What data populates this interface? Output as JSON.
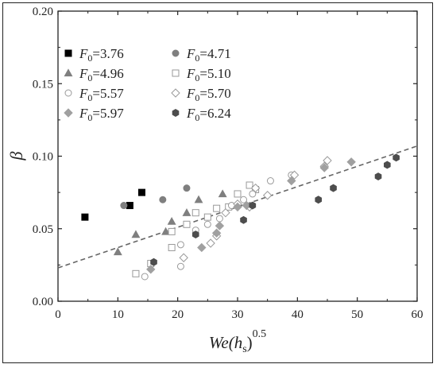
{
  "chart_data": {
    "type": "scatter",
    "title": "",
    "xlabel_main": "We",
    "xlabel_paren": "(h",
    "xlabel_sub": "s",
    "xlabel_close": ")",
    "xlabel_sup": "0.5",
    "ylabel": "β",
    "xlim": [
      0,
      60
    ],
    "ylim": [
      0,
      0.2
    ],
    "x_ticks": [
      "0",
      "10",
      "20",
      "30",
      "40",
      "50",
      "60"
    ],
    "y_ticks": [
      "0.00",
      "0.05",
      "0.10",
      "0.15",
      "0.20"
    ],
    "grid": false,
    "legend_position": "top-left",
    "legend_prefix": "F",
    "legend_sub": "0",
    "trendline": {
      "style": "dashed",
      "color": "#666666",
      "x": [
        0,
        60
      ],
      "y": [
        0.023,
        0.107
      ]
    },
    "series": [
      {
        "name": "=3.76",
        "marker": "square-filled",
        "color": "#000000",
        "points": [
          [
            4.5,
            0.058
          ],
          [
            12,
            0.066
          ],
          [
            14,
            0.075
          ]
        ]
      },
      {
        "name": "=4.71",
        "marker": "circle-filled",
        "color": "#7f7f7f",
        "points": [
          [
            11,
            0.066
          ],
          [
            17.5,
            0.07
          ],
          [
            21.5,
            0.078
          ]
        ]
      },
      {
        "name": "=4.96",
        "marker": "triangle-filled",
        "color": "#7f7f7f",
        "points": [
          [
            10,
            0.034
          ],
          [
            13,
            0.046
          ],
          [
            18,
            0.048
          ],
          [
            19,
            0.055
          ],
          [
            21.5,
            0.061
          ],
          [
            23.5,
            0.07
          ],
          [
            27.5,
            0.074
          ]
        ]
      },
      {
        "name": "=5.10",
        "marker": "square-open",
        "color": "#9a9a9a",
        "points": [
          [
            13,
            0.019
          ],
          [
            15.5,
            0.026
          ],
          [
            19,
            0.037
          ],
          [
            19,
            0.048
          ],
          [
            21.5,
            0.053
          ],
          [
            23,
            0.061
          ],
          [
            25,
            0.058
          ],
          [
            26.5,
            0.064
          ],
          [
            28.5,
            0.065
          ],
          [
            30,
            0.074
          ],
          [
            32,
            0.08
          ],
          [
            33,
            0.077
          ]
        ]
      },
      {
        "name": "=5.57",
        "marker": "circle-open",
        "color": "#9a9a9a",
        "points": [
          [
            14.5,
            0.017
          ],
          [
            20.5,
            0.024
          ],
          [
            20.5,
            0.039
          ],
          [
            23,
            0.049
          ],
          [
            25,
            0.053
          ],
          [
            27,
            0.057
          ],
          [
            29,
            0.066
          ],
          [
            31,
            0.07
          ],
          [
            32.5,
            0.074
          ],
          [
            35.5,
            0.083
          ],
          [
            39,
            0.087
          ]
        ]
      },
      {
        "name": "=5.70",
        "marker": "diamond-open",
        "color": "#9a9a9a",
        "points": [
          [
            21,
            0.03
          ],
          [
            25.5,
            0.04
          ],
          [
            26.5,
            0.045
          ],
          [
            28,
            0.061
          ],
          [
            30,
            0.067
          ],
          [
            32,
            0.065
          ],
          [
            33,
            0.078
          ],
          [
            35,
            0.073
          ],
          [
            39.5,
            0.087
          ],
          [
            44.5,
            0.093
          ],
          [
            45,
            0.097
          ]
        ]
      },
      {
        "name": "=5.97",
        "marker": "diamond-filled",
        "color": "#a0a0a0",
        "points": [
          [
            15.5,
            0.022
          ],
          [
            24,
            0.037
          ],
          [
            26.5,
            0.047
          ],
          [
            27,
            0.052
          ],
          [
            30,
            0.065
          ],
          [
            31.5,
            0.066
          ],
          [
            39,
            0.083
          ],
          [
            44.5,
            0.092
          ],
          [
            49,
            0.096
          ]
        ]
      },
      {
        "name": "=6.24",
        "marker": "hexagon-filled",
        "color": "#4d4d4d",
        "points": [
          [
            16,
            0.027
          ],
          [
            23,
            0.046
          ],
          [
            31,
            0.056
          ],
          [
            32.5,
            0.066
          ],
          [
            43.5,
            0.07
          ],
          [
            46,
            0.078
          ],
          [
            53.5,
            0.086
          ],
          [
            55,
            0.094
          ],
          [
            56.5,
            0.099
          ]
        ]
      }
    ]
  }
}
